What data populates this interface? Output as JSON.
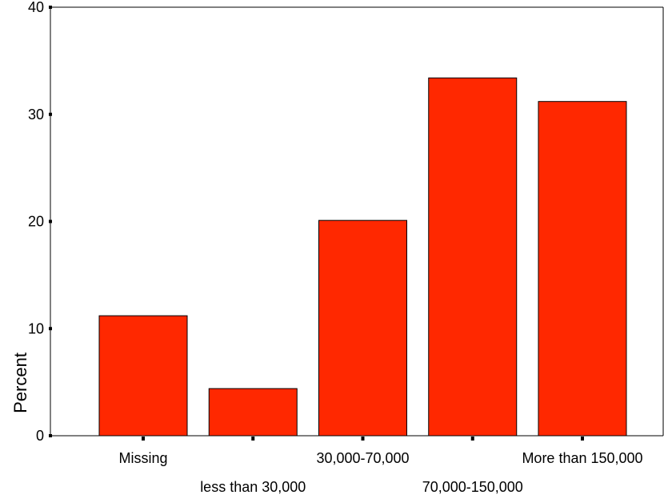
{
  "chart_data": {
    "type": "bar",
    "title": "",
    "xlabel": "",
    "ylabel": "Percent",
    "categories": [
      "Missing",
      "less than 30,000",
      "30,000-70,000",
      "70,000-150,000",
      "More than 150,000"
    ],
    "values": [
      11.2,
      4.4,
      20.1,
      33.4,
      31.2
    ],
    "ylim": [
      0,
      40
    ],
    "yticks": [
      "0",
      "10",
      "20",
      "30",
      "40"
    ],
    "grid": false,
    "legend": "none",
    "bar_color": "#ff2800",
    "bar_edge_color": "#000000"
  }
}
